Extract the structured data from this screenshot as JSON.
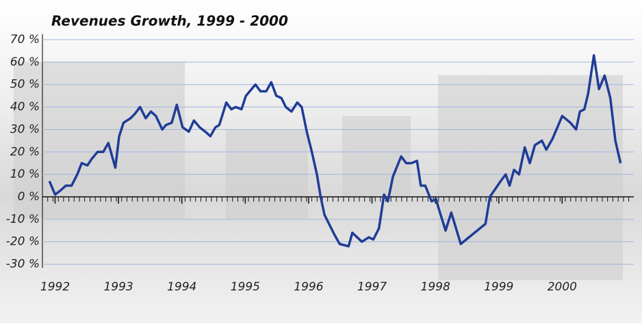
{
  "chart_data": {
    "type": "line",
    "title": "Revenues Growth, 1999 - 2000",
    "x": [
      1991.91,
      1992,
      1992.09,
      1992.17,
      1992.26,
      1992.35,
      1992.42,
      1992.51,
      1992.58,
      1992.67,
      1992.76,
      1992.84,
      1992.95,
      1993.01,
      1993.08,
      1993.19,
      1993.26,
      1993.34,
      1993.43,
      1993.51,
      1993.59,
      1993.69,
      1993.75,
      1993.84,
      1993.92,
      1994.01,
      1994.11,
      1994.19,
      1994.28,
      1994.37,
      1994.45,
      1994.53,
      1994.59,
      1994.7,
      1994.78,
      1994.85,
      1994.94,
      1995.01,
      1995.16,
      1995.24,
      1995.33,
      1995.41,
      1995.49,
      1995.57,
      1995.64,
      1995.73,
      1995.82,
      1995.89,
      1995.97,
      1996.05,
      1996.13,
      1996.19,
      1996.25,
      1996.41,
      1996.49,
      1996.63,
      1996.69,
      1996.84,
      1996.95,
      1997.02,
      1997.11,
      1997.19,
      1997.25,
      1997.33,
      1997.46,
      1997.54,
      1997.62,
      1997.71,
      1997.77,
      1997.84,
      1997.94,
      1998.01,
      1998.05,
      1998.16,
      1998.25,
      1998.4,
      1998.79,
      1998.86,
      1999.03,
      1999.11,
      1999.17,
      1999.24,
      1999.32,
      1999.41,
      1999.49,
      1999.57,
      1999.68,
      1999.75,
      1999.85,
      2000,
      2000.13,
      2000.22,
      2000.28,
      2000.35,
      2000.41,
      2000.5,
      2000.58,
      2000.67,
      2000.76,
      2000.84,
      2000.92
    ],
    "series": [
      {
        "color": "#1f3c96",
        "values": [
          7,
          1,
          3,
          5,
          5,
          10,
          15,
          14,
          17,
          20,
          20,
          24,
          13,
          27,
          33,
          35,
          37,
          40,
          35,
          38,
          36,
          30,
          32,
          33,
          41,
          31,
          29,
          34,
          31,
          29,
          27,
          31,
          32,
          42,
          39,
          40,
          39,
          45,
          50,
          47,
          47,
          51,
          45,
          44,
          40,
          38,
          42,
          40,
          29,
          20,
          10,
          0,
          -8,
          -17,
          -21,
          -22,
          -16,
          -20,
          -18,
          -19,
          -14,
          1,
          -2,
          9,
          18,
          15,
          15,
          16,
          5,
          5,
          -2,
          -1,
          -5,
          -15,
          -7,
          -21,
          -12,
          0,
          7,
          10,
          5,
          12,
          10,
          22,
          15,
          23,
          25,
          21,
          26,
          36,
          33,
          30,
          38,
          39,
          46,
          63,
          48,
          54,
          44,
          25,
          15
        ]
      }
    ],
    "xlim": [
      1991.8,
      2001.13
    ],
    "xticks": [
      1992,
      1993,
      1994,
      1995,
      1996,
      1997,
      1998,
      1999,
      2000
    ],
    "ylim": [
      -30,
      70
    ],
    "yticks": [
      {
        "value": -30,
        "label": "-30 %"
      },
      {
        "value": -20,
        "label": "-20 %"
      },
      {
        "value": -10,
        "label": "-10 %"
      },
      {
        "value": 0,
        "label": "0 %"
      },
      {
        "value": 10,
        "label": "10 %"
      },
      {
        "value": 20,
        "label": "20 %"
      },
      {
        "value": 30,
        "label": "30 %"
      },
      {
        "value": 40,
        "label": "40 %"
      },
      {
        "value": 50,
        "label": "50 %"
      },
      {
        "value": 60,
        "label": "60 %"
      },
      {
        "value": 70,
        "label": "70 %"
      }
    ],
    "grid": true
  }
}
